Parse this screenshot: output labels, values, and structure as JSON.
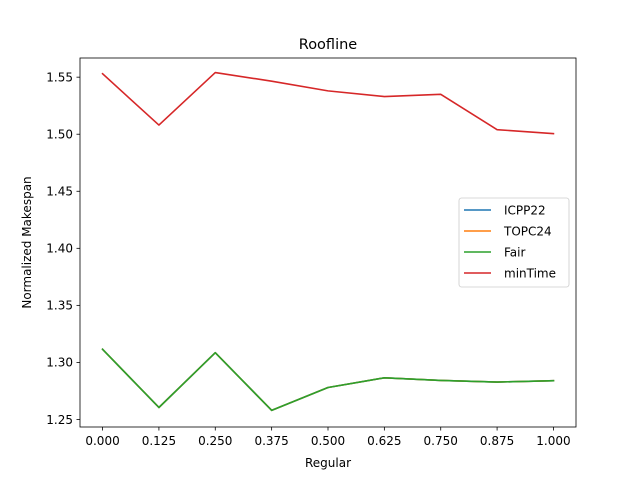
{
  "chart_data": {
    "type": "line",
    "title": "Roofline",
    "xlabel": "Regular",
    "ylabel": "Normalized Makespan",
    "x": [
      0.0,
      0.125,
      0.25,
      0.375,
      0.5,
      0.625,
      0.75,
      0.875,
      1.0
    ],
    "x_tick_labels": [
      "0.000",
      "0.125",
      "0.250",
      "0.375",
      "0.500",
      "0.625",
      "0.750",
      "0.875",
      "1.000"
    ],
    "y_ticks": [
      1.25,
      1.3,
      1.35,
      1.4,
      1.45,
      1.5,
      1.55
    ],
    "y_tick_labels": [
      "1.25",
      "1.30",
      "1.35",
      "1.40",
      "1.45",
      "1.50",
      "1.55"
    ],
    "xlim": [
      -0.05,
      1.05
    ],
    "ylim": [
      1.2434,
      1.5668
    ],
    "grid": false,
    "legend_position": "center-right",
    "series": [
      {
        "name": "ICPP22",
        "color": "#1f77b4",
        "values": [
          1.3115,
          1.2605,
          1.3085,
          1.258,
          1.278,
          1.2865,
          1.2842,
          1.2828,
          1.284
        ]
      },
      {
        "name": "TOPC24",
        "color": "#ff7f0e",
        "values": [
          1.3115,
          1.2605,
          1.3085,
          1.258,
          1.278,
          1.2865,
          1.2842,
          1.2828,
          1.284
        ]
      },
      {
        "name": "Fair",
        "color": "#2ca02c",
        "values": [
          1.3115,
          1.2605,
          1.3085,
          1.258,
          1.278,
          1.2865,
          1.2842,
          1.2828,
          1.284
        ]
      },
      {
        "name": "minTime",
        "color": "#d62728",
        "values": [
          1.553,
          1.508,
          1.554,
          1.5465,
          1.538,
          1.533,
          1.535,
          1.504,
          1.5005
        ]
      }
    ]
  }
}
